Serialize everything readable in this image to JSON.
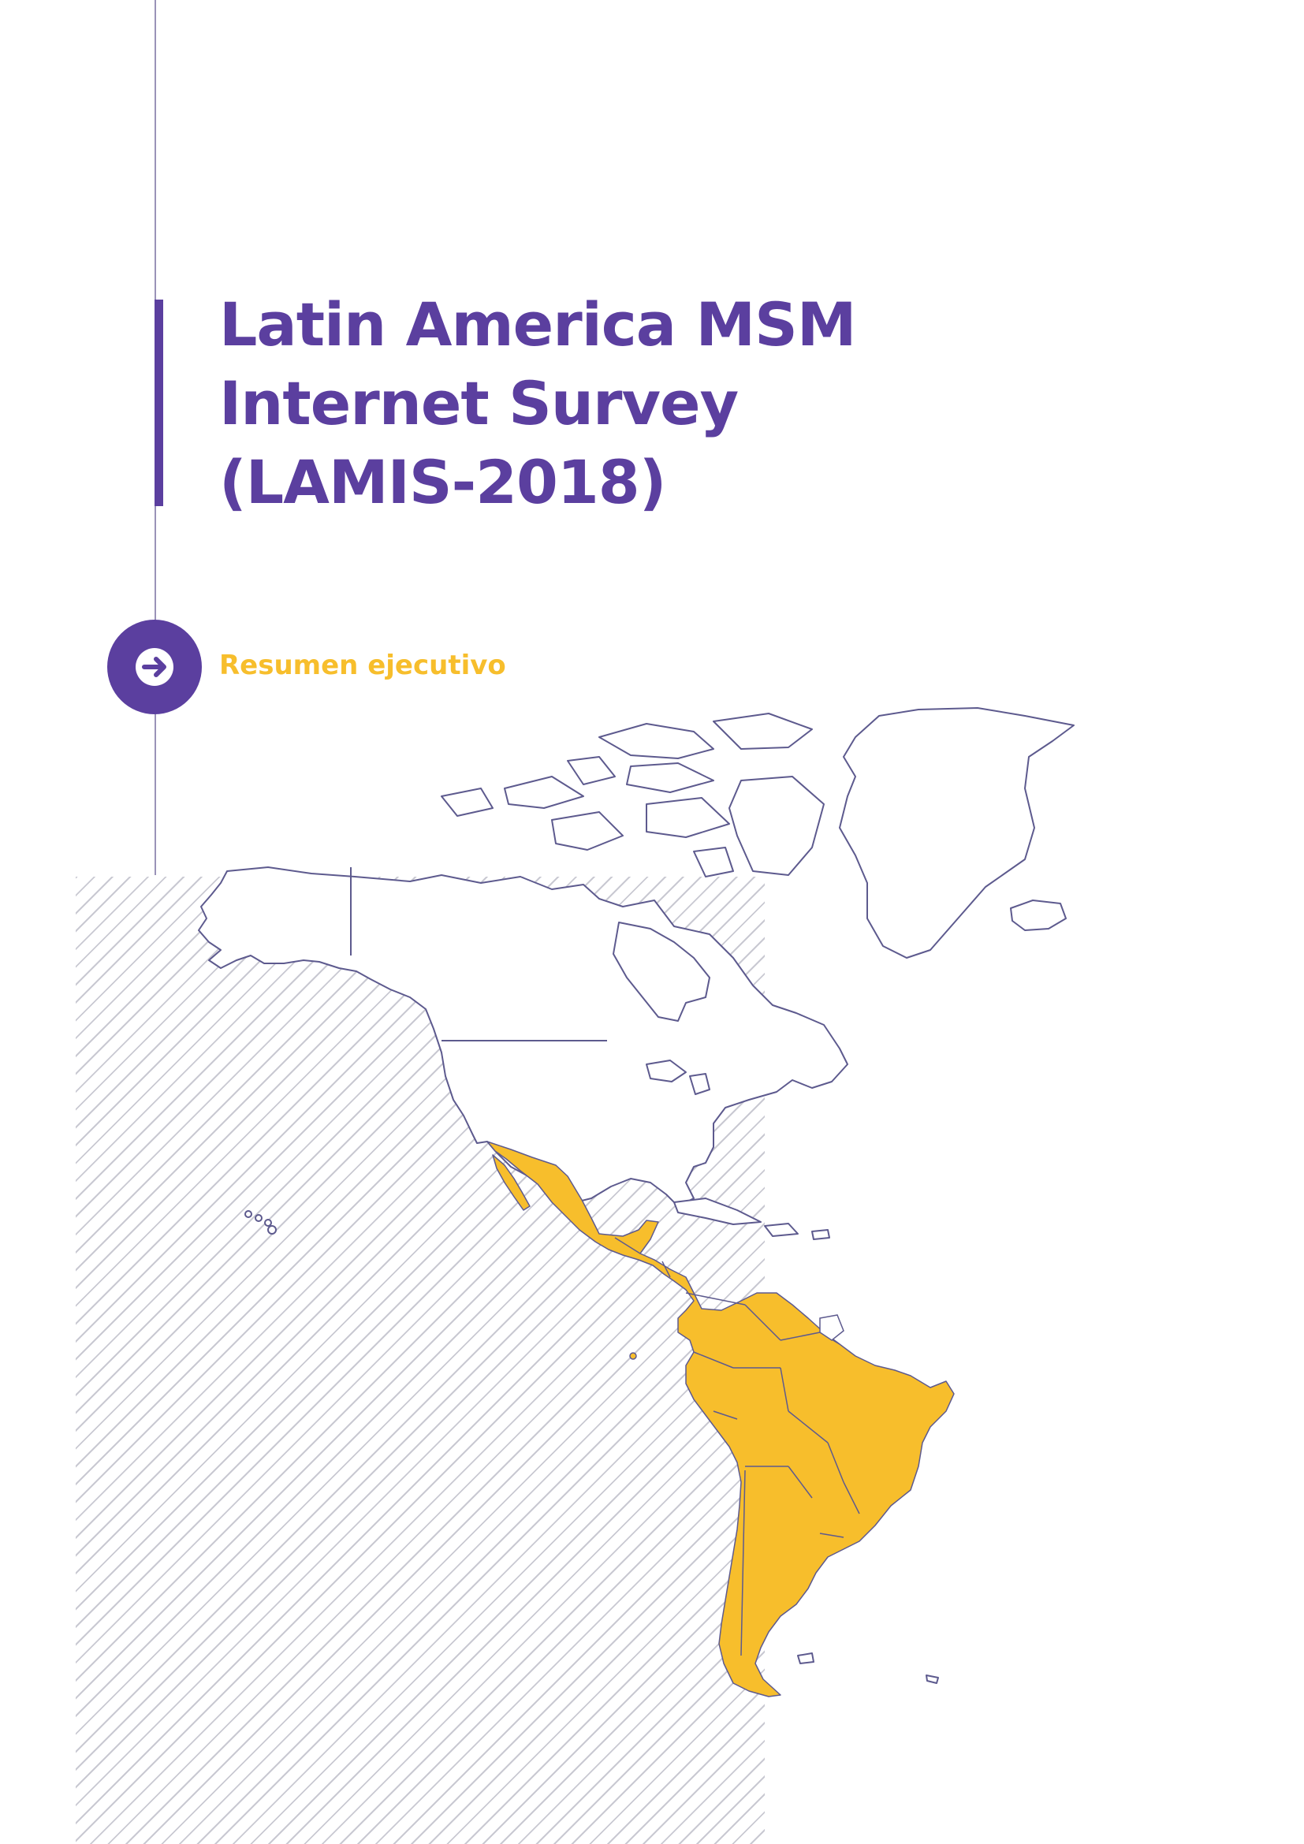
{
  "document": {
    "title_lines": [
      "Latin America MSM",
      "Internet Survey",
      "(LAMIS-2018)"
    ],
    "subtitle": "Resumen ejecutivo"
  },
  "colors": {
    "primary_purple": "#5b3f9f",
    "accent_yellow": "#f7be2c",
    "map_outline": "#5d5a8e",
    "hatch": "#c9c9d2"
  },
  "icons": {
    "arrow": "arrow-right-icon",
    "map": "americas-map"
  }
}
